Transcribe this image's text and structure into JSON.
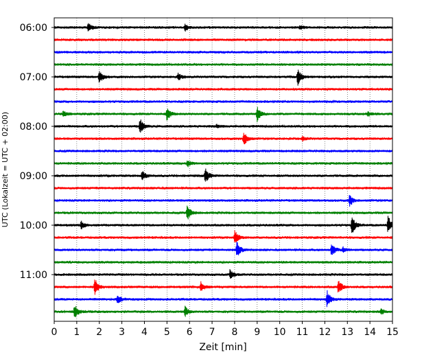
{
  "chart_data": {
    "type": "line",
    "title": "",
    "xlabel": "Zeit  [min]",
    "ylabel": "UTC (Lokalzeit = UTC + 02:00)",
    "xlim": [
      0,
      15
    ],
    "xticks": [
      0,
      1,
      2,
      3,
      4,
      5,
      6,
      7,
      8,
      9,
      10,
      11,
      12,
      13,
      14,
      15
    ],
    "x_grid": true,
    "y_grid": false,
    "legend": "none",
    "trace_interval_min": 15,
    "start_time": "06:00",
    "end_time": "11:45",
    "ytick_labels": [
      "06:00",
      "07:00",
      "08:00",
      "09:00",
      "10:00",
      "11:00"
    ],
    "ytick_traces": [
      0,
      4,
      8,
      12,
      16,
      20
    ],
    "colors": [
      "#000000",
      "#ff0000",
      "#0000ff",
      "#008000"
    ],
    "traces": [
      {
        "time": "06:00",
        "events": [
          [
            1.5,
            0.6
          ],
          [
            5.8,
            0.5
          ],
          [
            10.9,
            0.25
          ]
        ]
      },
      {
        "time": "06:15",
        "events": []
      },
      {
        "time": "06:30",
        "events": []
      },
      {
        "time": "06:45",
        "events": []
      },
      {
        "time": "07:00",
        "events": [
          [
            2.0,
            0.9
          ],
          [
            5.5,
            0.5
          ],
          [
            10.8,
            1.2
          ]
        ]
      },
      {
        "time": "07:15",
        "events": []
      },
      {
        "time": "07:30",
        "events": []
      },
      {
        "time": "07:45",
        "events": [
          [
            0.4,
            0.5
          ],
          [
            5.0,
            0.9
          ],
          [
            9.0,
            1.0
          ],
          [
            13.9,
            0.3
          ]
        ]
      },
      {
        "time": "08:00",
        "events": [
          [
            3.8,
            1.2
          ],
          [
            7.2,
            0.2
          ]
        ]
      },
      {
        "time": "08:15",
        "events": [
          [
            8.4,
            1.1
          ],
          [
            11.0,
            0.3
          ]
        ]
      },
      {
        "time": "08:30",
        "events": []
      },
      {
        "time": "08:45",
        "events": [
          [
            5.9,
            0.5
          ]
        ]
      },
      {
        "time": "09:00",
        "events": [
          [
            3.9,
            0.7
          ],
          [
            6.7,
            1.0
          ]
        ]
      },
      {
        "time": "09:15",
        "events": []
      },
      {
        "time": "09:30",
        "events": [
          [
            13.1,
            0.8
          ]
        ]
      },
      {
        "time": "09:45",
        "events": [
          [
            5.9,
            1.1
          ]
        ]
      },
      {
        "time": "10:00",
        "events": [
          [
            1.2,
            0.6
          ],
          [
            13.2,
            1.3
          ],
          [
            14.8,
            1.3
          ]
        ]
      },
      {
        "time": "10:15",
        "events": [
          [
            8.0,
            1.0
          ]
        ]
      },
      {
        "time": "10:30",
        "events": [
          [
            8.1,
            1.1
          ],
          [
            12.3,
            1.0
          ],
          [
            12.8,
            0.4
          ]
        ]
      },
      {
        "time": "10:45",
        "events": []
      },
      {
        "time": "11:00",
        "events": [
          [
            7.8,
            0.7
          ]
        ]
      },
      {
        "time": "11:15",
        "events": [
          [
            1.8,
            1.3
          ],
          [
            6.5,
            0.7
          ],
          [
            12.6,
            1.1
          ]
        ]
      },
      {
        "time": "11:30",
        "events": [
          [
            2.8,
            0.7
          ],
          [
            12.1,
            1.2
          ]
        ]
      },
      {
        "time": "11:45",
        "events": [
          [
            0.9,
            1.0
          ],
          [
            5.8,
            0.7
          ],
          [
            14.5,
            0.4
          ]
        ]
      }
    ]
  }
}
